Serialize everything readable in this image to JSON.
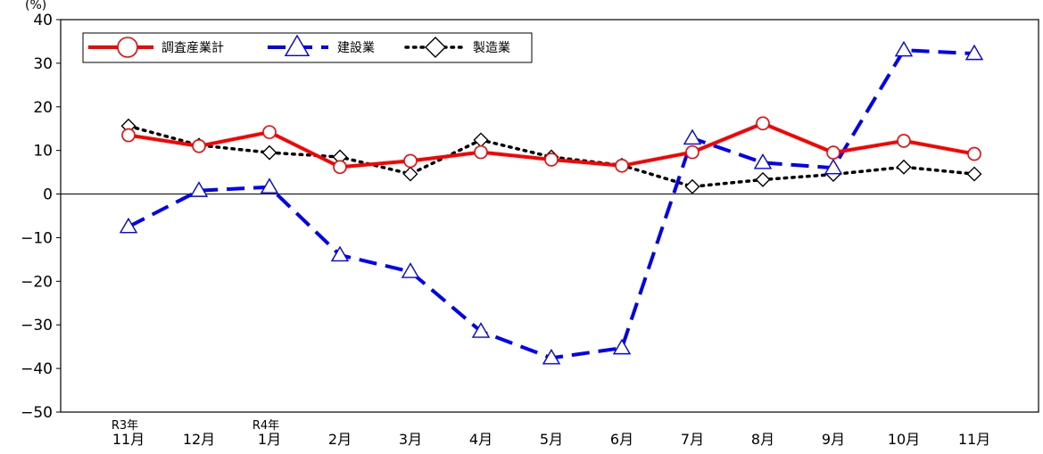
{
  "chart_data": {
    "type": "line",
    "title": "",
    "unit_label": "(%)",
    "xlabel": "",
    "ylabel": "",
    "ylim": [
      -50,
      40
    ],
    "yticks": [
      40,
      30,
      20,
      10,
      0,
      -10,
      -20,
      -30,
      -40,
      -50
    ],
    "categories": [
      "11月",
      "12月",
      "1月",
      "2月",
      "3月",
      "4月",
      "5月",
      "6月",
      "7月",
      "8月",
      "9月",
      "10月",
      "11月"
    ],
    "year_labels": [
      "R3年",
      "",
      "R4年",
      "",
      "",
      "",
      "",
      "",
      "",
      "",
      "",
      "",
      ""
    ],
    "legend_position": "top-left",
    "grid": false,
    "series": [
      {
        "name": "調査産業計",
        "color": "#ff0000",
        "style": "solid",
        "marker": "circle",
        "values": [
          13.5,
          11.0,
          14.2,
          6.2,
          7.6,
          9.6,
          7.9,
          6.5,
          9.6,
          16.2,
          9.5,
          12.2,
          9.2
        ]
      },
      {
        "name": "建設業",
        "color": "#0000ff",
        "style": "dashed",
        "marker": "triangle",
        "values": [
          -7.5,
          0.8,
          1.6,
          -14.0,
          -17.8,
          -31.5,
          -37.6,
          -35.3,
          12.8,
          7.2,
          6.0,
          33.0,
          32.2
        ]
      },
      {
        "name": "製造業",
        "color": "#000000",
        "style": "dotted",
        "marker": "diamond",
        "values": [
          15.6,
          11.2,
          9.5,
          8.5,
          4.6,
          12.4,
          8.5,
          6.6,
          1.7,
          3.3,
          4.5,
          6.2,
          4.6
        ]
      }
    ]
  }
}
